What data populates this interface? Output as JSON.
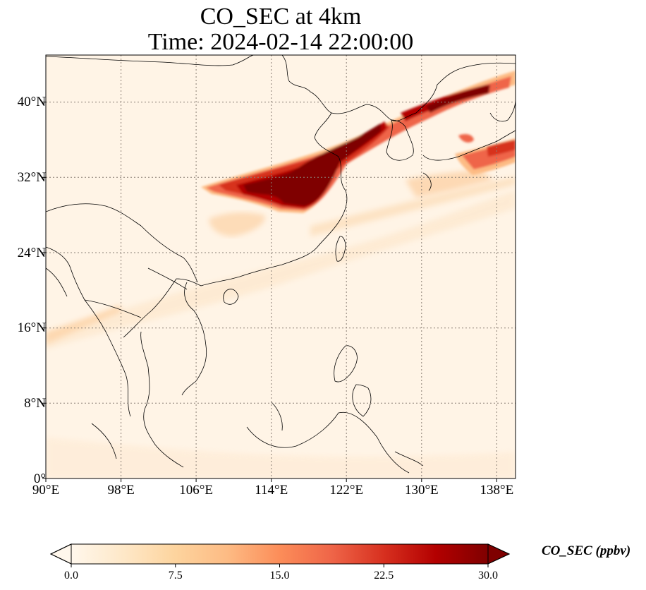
{
  "title_line1": "CO_SEC at 4km",
  "title_line2": "Time: 2024-02-14 22:00:00",
  "lat_ticks": [
    "0°",
    "8°N",
    "16°N",
    "24°N",
    "32°N",
    "40°N"
  ],
  "lon_ticks": [
    "90°E",
    "98°E",
    "106°E",
    "114°E",
    "122°E",
    "130°E",
    "138°E"
  ],
  "extent": {
    "lon": [
      90,
      140
    ],
    "lat": [
      0,
      45
    ]
  },
  "colorbar": {
    "label": "CO_SEC (ppbv)",
    "ticks": [
      "0.0",
      "7.5",
      "15.0",
      "22.5",
      "30.0"
    ],
    "range": [
      0,
      30
    ],
    "colormap": "OrRd",
    "extend": "both",
    "colors": [
      "#fff7ec",
      "#fee8c8",
      "#fdd49e",
      "#fdbb84",
      "#fc8d59",
      "#ef6548",
      "#d7301f",
      "#b30000",
      "#7f0000"
    ]
  },
  "colors": {
    "background": "#fff4e6",
    "gridline": "#8a7f75",
    "coastline": "#000000"
  }
}
